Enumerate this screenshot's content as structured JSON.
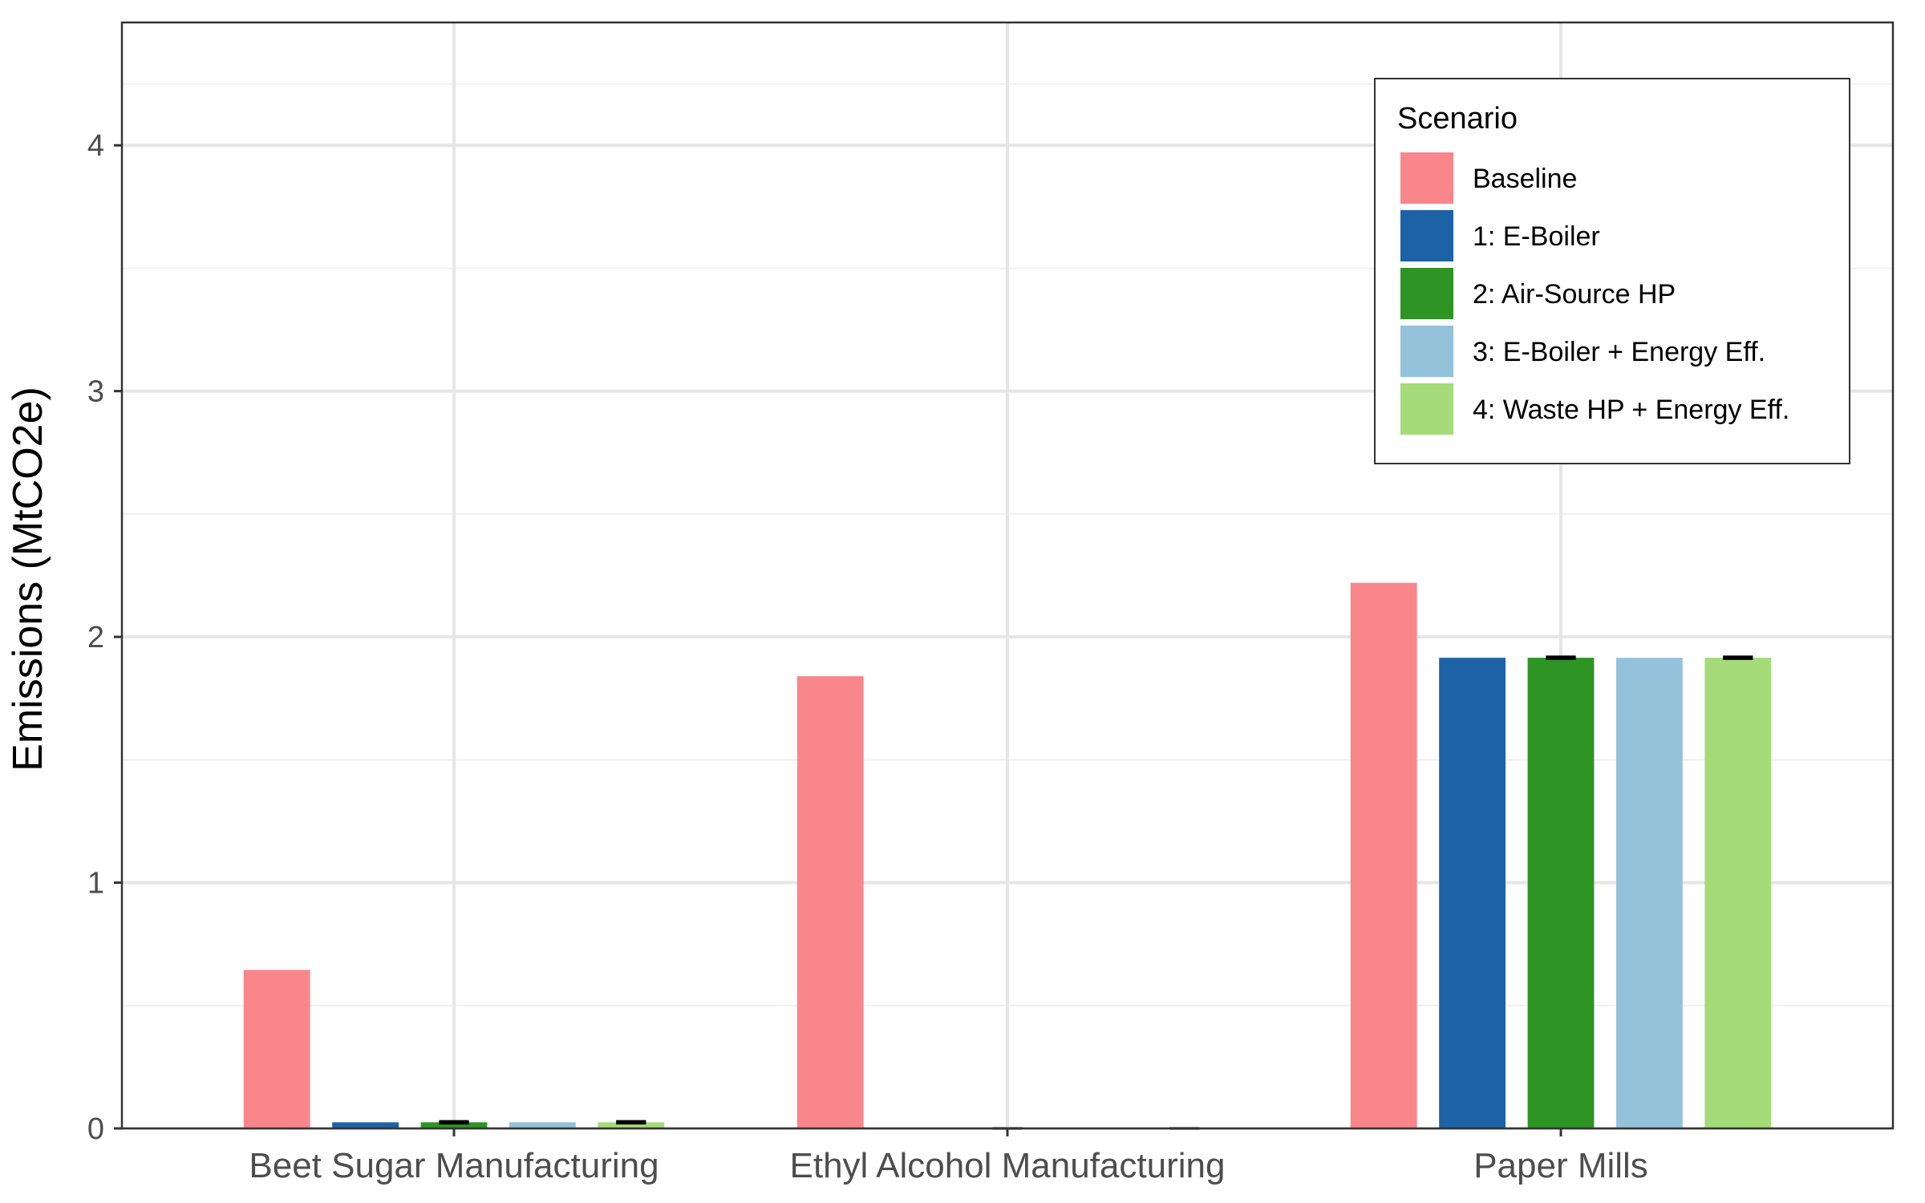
{
  "chart_data": {
    "type": "bar",
    "title": "",
    "xlabel": "",
    "ylabel": "Emissions (MtCO2e)",
    "ylim": [
      0,
      4.5
    ],
    "yticks": [
      0,
      1,
      2,
      3,
      4
    ],
    "grid": true,
    "legend_title": "Scenario",
    "legend_placement": "top-right",
    "categories": [
      "Beet Sugar Manufacturing",
      "Ethyl Alcohol Manufacturing",
      "Paper Mills"
    ],
    "series": [
      {
        "name": "Baseline",
        "color": "#F8868A",
        "values": [
          0.645,
          1.84,
          2.22
        ],
        "error": [
          null,
          null,
          null
        ]
      },
      {
        "name": "1: E-Boiler",
        "color": "#1D62A5",
        "values": [
          0.025,
          0.0,
          1.915
        ],
        "error": [
          null,
          null,
          null
        ]
      },
      {
        "name": "2: Air-Source HP",
        "color": "#2E9424",
        "values": [
          0.025,
          0.0,
          1.915
        ],
        "error": [
          0.004,
          0.0,
          0.004
        ]
      },
      {
        "name": "3: E-Boiler + Energy Eff.",
        "color": "#95C2DB",
        "values": [
          0.025,
          0.0,
          1.915
        ],
        "error": [
          null,
          null,
          null
        ]
      },
      {
        "name": "4: Waste HP + Energy Eff.",
        "color": "#A5DB78",
        "values": [
          0.025,
          0.0,
          1.915
        ],
        "error": [
          0.004,
          0.0,
          0.004
        ]
      }
    ]
  }
}
